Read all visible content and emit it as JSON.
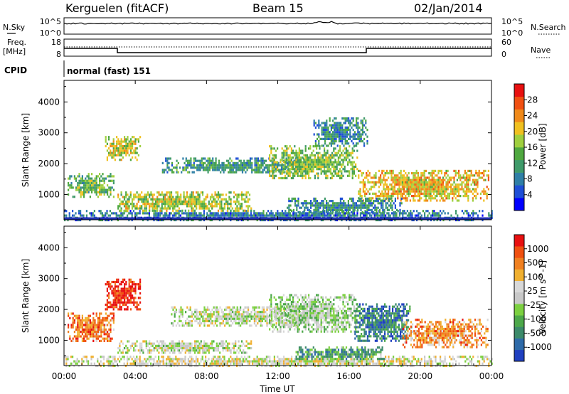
{
  "header": {
    "station": "Kerguelen (fitACF)",
    "beam": "Beam 15",
    "date": "02/Jan/2014"
  },
  "summary_panels": {
    "nsky_label": "N.Sky",
    "nsearch_label": "N.Search",
    "nsky_ticks": [
      "10^5",
      "10^0"
    ],
    "nsearch_ticks": [
      "10^5",
      "10^0"
    ],
    "freq_label_1": "Freq.",
    "freq_label_2": "[MHz]",
    "freq_ticks": [
      "18",
      "8"
    ],
    "nave_label": "Nave",
    "nave_ticks": [
      "60",
      "0"
    ],
    "cpid_label": "CPID",
    "cpid_value": "normal (fast) 151"
  },
  "chart_data": [
    {
      "type": "heatmap",
      "name": "power",
      "xlabel": "",
      "ylabel": "Slant Range [km]",
      "xlim": [
        0,
        24
      ],
      "ylim": [
        180,
        4700
      ],
      "y_ticks": [
        "1000",
        "2000",
        "3000",
        "4000"
      ],
      "colorbar": {
        "label": "Power [dB]",
        "ticks": [
          "4",
          "8",
          "12",
          "16",
          "20",
          "24",
          "28"
        ],
        "colors": [
          "#0000ff",
          "#1f4fd6",
          "#2f7fa6",
          "#3f9a6a",
          "#4fa840",
          "#9fcf3f",
          "#f0c020",
          "#f08a1a",
          "#f05012",
          "#e81010"
        ]
      },
      "echo_regions": [
        {
          "t0": 0.0,
          "t1": 24.0,
          "r0": 200,
          "r1": 500,
          "level": 0.25
        },
        {
          "t0": 0.2,
          "t1": 2.8,
          "r0": 950,
          "r1": 1700,
          "level": 0.45
        },
        {
          "t0": 2.3,
          "t1": 4.3,
          "r0": 2100,
          "r1": 2900,
          "level": 0.6
        },
        {
          "t0": 3.0,
          "t1": 10.5,
          "r0": 500,
          "r1": 1100,
          "level": 0.55
        },
        {
          "t0": 5.5,
          "t1": 13.5,
          "r0": 1700,
          "r1": 2200,
          "level": 0.35
        },
        {
          "t0": 11.5,
          "t1": 16.5,
          "r0": 1500,
          "r1": 2600,
          "level": 0.5
        },
        {
          "t0": 14.0,
          "t1": 17.0,
          "r0": 2600,
          "r1": 3500,
          "level": 0.3
        },
        {
          "t0": 16.5,
          "t1": 23.8,
          "r0": 800,
          "r1": 1800,
          "level": 0.65
        },
        {
          "t0": 12.5,
          "t1": 19.0,
          "r0": 400,
          "r1": 900,
          "level": 0.3
        }
      ]
    },
    {
      "type": "heatmap",
      "name": "velocity",
      "xlabel": "Time UT",
      "ylabel": "Slant Range [km]",
      "xlim": [
        0,
        24
      ],
      "ylim": [
        180,
        4700
      ],
      "x_ticks": [
        "00:00",
        "04:00",
        "08:00",
        "12:00",
        "16:00",
        "20:00",
        "00:00"
      ],
      "y_ticks": [
        "1000",
        "2000",
        "3000",
        "4000"
      ],
      "colorbar": {
        "label": "Velocity [m s^-1]",
        "ticks": [
          "1000",
          "500",
          "100",
          "25",
          "-25",
          "-100",
          "-500",
          "-1000"
        ],
        "colors": [
          "#2040c0",
          "#2e6aa8",
          "#3c8a6a",
          "#4da84a",
          "#7cd040",
          "#c8c8c8",
          "#d8d8d8",
          "#f0b030",
          "#f08020",
          "#f05010",
          "#e81010"
        ]
      },
      "echo_regions": [
        {
          "t0": 0.0,
          "t1": 24.0,
          "r0": 200,
          "r1": 500,
          "level": 0.55
        },
        {
          "t0": 0.2,
          "t1": 2.8,
          "r0": 950,
          "r1": 1900,
          "level": 0.8
        },
        {
          "t0": 2.3,
          "t1": 4.3,
          "r0": 2000,
          "r1": 3000,
          "level": 0.95
        },
        {
          "t0": 3.0,
          "t1": 10.5,
          "r0": 600,
          "r1": 1000,
          "level": 0.5
        },
        {
          "t0": 6.0,
          "t1": 13.5,
          "r0": 1500,
          "r1": 2100,
          "level": 0.5
        },
        {
          "t0": 11.5,
          "t1": 16.5,
          "r0": 1300,
          "r1": 2500,
          "level": 0.45
        },
        {
          "t0": 16.3,
          "t1": 19.5,
          "r0": 1000,
          "r1": 2200,
          "level": 0.2
        },
        {
          "t0": 19.0,
          "t1": 23.8,
          "r0": 800,
          "r1": 1700,
          "level": 0.75
        },
        {
          "t0": 13.0,
          "t1": 18.0,
          "r0": 400,
          "r1": 800,
          "level": 0.3
        }
      ]
    }
  ]
}
